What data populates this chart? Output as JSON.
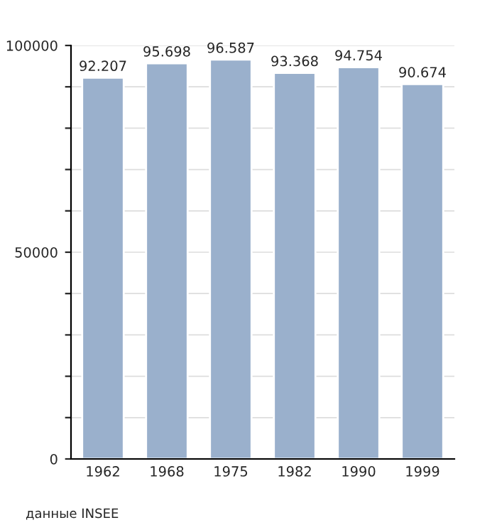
{
  "chart_data": {
    "type": "bar",
    "categories": [
      "1962",
      "1968",
      "1975",
      "1982",
      "1990",
      "1999"
    ],
    "values": [
      92207,
      95698,
      96587,
      93368,
      94754,
      90674
    ],
    "value_labels": [
      "92.207",
      "95.698",
      "96.587",
      "93.368",
      "94.754",
      "90.674"
    ],
    "color": "#9ab0cc",
    "ylim": [
      0,
      100000
    ],
    "yticks": [
      0,
      {
        "value": 10000,
        "label": null
      },
      {
        "value": 20000,
        "label": null
      },
      {
        "value": 30000,
        "label": null
      },
      {
        "value": 40000,
        "label": null
      },
      50000,
      {
        "value": 60000,
        "label": null
      },
      {
        "value": 70000,
        "label": null
      },
      {
        "value": 80000,
        "label": null
      },
      {
        "value": 90000,
        "label": null
      },
      100000
    ],
    "grid": "y",
    "annotations": [
      "данные INSEE"
    ]
  }
}
